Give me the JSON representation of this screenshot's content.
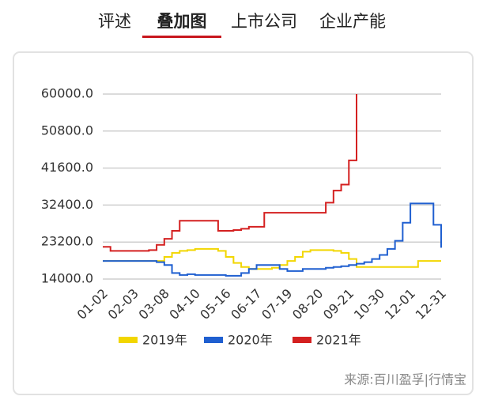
{
  "tabs": [
    "评述",
    "叠加图",
    "上市公司",
    "企业产能"
  ],
  "active_tab": 1,
  "source": "来源:百川盈孚|行情宝",
  "chart_data": {
    "type": "line",
    "categories": [
      "01-02",
      null,
      null,
      null,
      "02-03",
      null,
      null,
      null,
      "03-08",
      null,
      null,
      null,
      "04-10",
      null,
      null,
      null,
      "05-16",
      null,
      null,
      null,
      "06-17",
      null,
      null,
      null,
      "07-19",
      null,
      null,
      null,
      "08-20",
      null,
      null,
      null,
      "09-21",
      null,
      null,
      null,
      "10-30",
      null,
      null,
      null,
      "12-01",
      null,
      null,
      null,
      "12-31"
    ],
    "series": [
      {
        "name": "2019年",
        "color": "#f2d600",
        "values": [
          18500,
          18500,
          18500,
          18500,
          18500,
          18500,
          18500,
          18500,
          19500,
          20500,
          21000,
          21200,
          21500,
          21500,
          21500,
          21000,
          19500,
          18000,
          17000,
          16500,
          16500,
          16500,
          16800,
          17500,
          18500,
          19500,
          20800,
          21200,
          21200,
          21200,
          21000,
          20500,
          19000,
          17000,
          17000,
          17000,
          17000,
          17000,
          17000,
          17000,
          17000,
          18500,
          18500,
          18500,
          18500
        ]
      },
      {
        "name": "2020年",
        "color": "#1f5fd0",
        "values": [
          18500,
          18500,
          18500,
          18500,
          18500,
          18500,
          18500,
          18200,
          17500,
          15500,
          15000,
          15200,
          15000,
          15000,
          15000,
          15000,
          14800,
          14800,
          15500,
          16500,
          17500,
          17500,
          17500,
          16500,
          16000,
          16000,
          16500,
          16500,
          16500,
          16800,
          17000,
          17200,
          17500,
          17800,
          18200,
          19000,
          20000,
          21500,
          23500,
          28000,
          32800,
          32800,
          32800,
          27500,
          21800
        ]
      },
      {
        "name": "2021年",
        "color": "#d42020",
        "values": [
          22000,
          21000,
          21000,
          21000,
          21000,
          21000,
          21200,
          22500,
          24000,
          26000,
          28500,
          28500,
          28500,
          28500,
          28500,
          26000,
          26000,
          26200,
          26500,
          27000,
          27000,
          30500,
          30500,
          30500,
          30500,
          30500,
          30500,
          30500,
          30500,
          33000,
          36000,
          37500,
          43500,
          60000,
          null,
          null,
          null,
          null,
          null,
          null,
          null,
          null,
          null,
          null,
          null
        ]
      }
    ],
    "ylim": [
      14000,
      60000
    ],
    "yticks": [
      {
        "value": 14000,
        "label": "14000.0"
      },
      {
        "value": 23200,
        "label": "23200.0"
      },
      {
        "value": 32400,
        "label": "32400.0"
      },
      {
        "value": 41600,
        "label": "41600.0"
      },
      {
        "value": 50800,
        "label": "50800.0"
      },
      {
        "value": 60000,
        "label": "60000.0"
      }
    ],
    "grid": true
  }
}
